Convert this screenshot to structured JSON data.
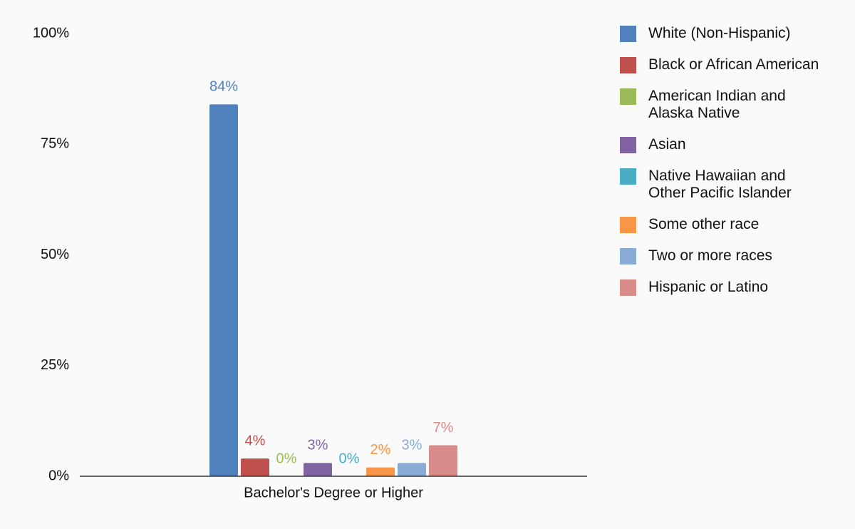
{
  "chart_data": {
    "type": "bar",
    "categories": [
      "Bachelor's Degree or Higher"
    ],
    "series": [
      {
        "name": "White (Non-Hispanic)",
        "color": "#4f81bd",
        "values": [
          84
        ],
        "value_labels": [
          "84%"
        ]
      },
      {
        "name": "Black or African American",
        "color": "#c0504d",
        "values": [
          4
        ],
        "value_labels": [
          "4%"
        ]
      },
      {
        "name": "American Indian and Alaska Native",
        "color": "#9bbb59",
        "values": [
          0
        ],
        "value_labels": [
          "0%"
        ]
      },
      {
        "name": "Asian",
        "color": "#8064a2",
        "values": [
          3
        ],
        "value_labels": [
          "3%"
        ]
      },
      {
        "name": "Native Hawaiian and Other Pacific Islander",
        "color": "#4bacc6",
        "values": [
          0
        ],
        "value_labels": [
          "0%"
        ]
      },
      {
        "name": "Some other race",
        "color": "#f79646",
        "values": [
          2
        ],
        "value_labels": [
          "2%"
        ]
      },
      {
        "name": "Two or more races",
        "color": "#8aabd6",
        "values": [
          3
        ],
        "value_labels": [
          "3%"
        ]
      },
      {
        "name": "Hispanic or Latino",
        "color": "#d98c8a",
        "values": [
          7
        ],
        "value_labels": [
          "7%"
        ]
      }
    ],
    "ylim": [
      0,
      100
    ],
    "yticks": [
      {
        "value": 0,
        "label": "0%"
      },
      {
        "value": 25,
        "label": "25%"
      },
      {
        "value": 50,
        "label": "50%"
      },
      {
        "value": 75,
        "label": "75%"
      },
      {
        "value": 100,
        "label": "100%"
      }
    ],
    "grid": false,
    "legend": "right"
  }
}
